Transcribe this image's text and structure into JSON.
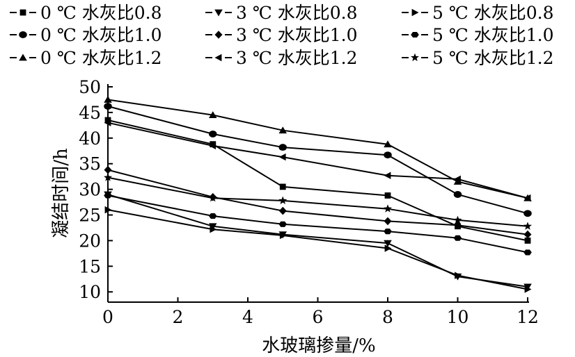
{
  "chart_data": {
    "type": "line",
    "xlabel": "水玻璃掺量/%",
    "ylabel": "凝结时间/h",
    "xlim": [
      0,
      12
    ],
    "ylim": [
      8,
      50
    ],
    "xticks": [
      0,
      2,
      4,
      6,
      8,
      10,
      12
    ],
    "yticks": [
      10,
      15,
      20,
      25,
      30,
      35,
      40,
      45,
      50
    ],
    "grid": false,
    "legend_position": "top",
    "x": [
      0,
      3,
      5,
      8,
      10,
      12
    ],
    "series": [
      {
        "name": "0 ℃ 水灰比0.8",
        "marker": "square",
        "values": [
          43.5,
          38.8,
          30.5,
          28.8,
          22.8,
          20.0
        ]
      },
      {
        "name": "0 ℃ 水灰比1.0",
        "marker": "circle",
        "values": [
          46.2,
          40.8,
          38.2,
          36.7,
          29.0,
          25.3
        ]
      },
      {
        "name": "0 ℃ 水灰比1.2",
        "marker": "triangle-up",
        "values": [
          47.5,
          44.5,
          41.5,
          38.8,
          31.5,
          28.3
        ]
      },
      {
        "name": "3 ℃ 水灰比0.8",
        "marker": "triangle-down",
        "values": [
          29.0,
          22.8,
          21.2,
          19.5,
          13.0,
          11.0
        ]
      },
      {
        "name": "3 ℃ 水灰比1.0",
        "marker": "diamond",
        "values": [
          33.8,
          28.5,
          25.8,
          23.8,
          23.0,
          21.2
        ]
      },
      {
        "name": "3 ℃ 水灰比1.2",
        "marker": "triangle-left",
        "values": [
          43.0,
          38.5,
          36.3,
          32.7,
          32.0,
          28.3
        ]
      },
      {
        "name": "5 ℃ 水灰比0.8",
        "marker": "triangle-right",
        "values": [
          26.0,
          22.2,
          21.0,
          18.5,
          13.2,
          10.5
        ]
      },
      {
        "name": "5 ℃ 水灰比1.0",
        "marker": "hexagon",
        "values": [
          28.8,
          24.8,
          23.2,
          21.8,
          20.5,
          17.7
        ]
      },
      {
        "name": "5 ℃ 水灰比1.2",
        "marker": "star",
        "values": [
          32.3,
          28.3,
          27.8,
          26.2,
          24.0,
          22.8
        ]
      }
    ]
  }
}
